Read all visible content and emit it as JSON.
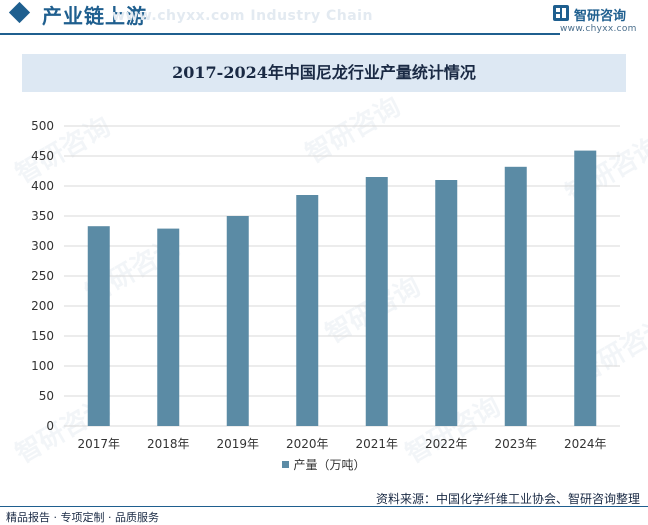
{
  "header": {
    "title": "产业链上游",
    "watermark": "www.chyxx.com  Industry Chain"
  },
  "brand": {
    "name": "智研咨询",
    "url": "www.chyxx.com"
  },
  "watermark_text": "智研咨询",
  "chart_data": {
    "type": "bar",
    "title": "2017-2024年中国尼龙行业产量统计情况",
    "categories": [
      "2017年",
      "2018年",
      "2019年",
      "2020年",
      "2021年",
      "2022年",
      "2023年",
      "2024年"
    ],
    "series": [
      {
        "name": "产量（万吨）",
        "values": [
          333,
          329,
          350,
          385,
          415,
          410,
          432,
          459
        ]
      }
    ],
    "ylim": [
      0,
      500
    ],
    "yticks": [
      0,
      50,
      100,
      150,
      200,
      250,
      300,
      350,
      400,
      450,
      500
    ],
    "grid": true,
    "legend": "bottom",
    "colors": {
      "bar": "#5b8ba5",
      "grid": "#d9d9d9"
    }
  },
  "footer": {
    "source": "资料来源：中国化学纤维工业协会、智研咨询整理",
    "tagline": "精品报告 · 专项定制 · 品质服务"
  }
}
